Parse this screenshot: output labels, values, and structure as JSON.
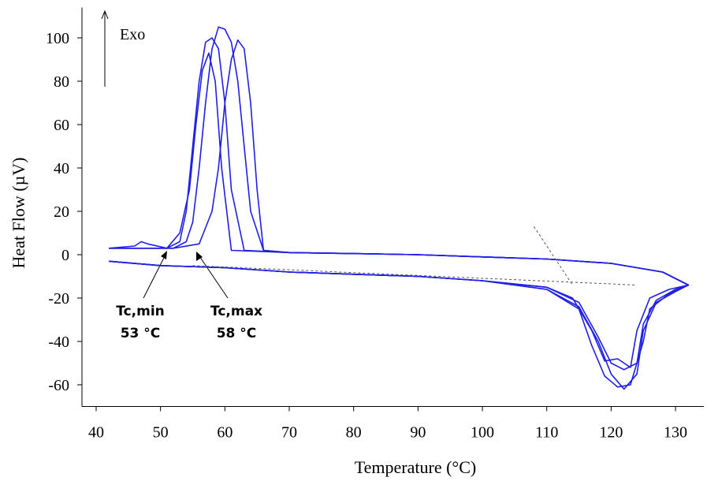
{
  "chart_data": {
    "type": "line",
    "x_label": "Temperature (°C)",
    "y_label": "Heat Flow (µV)",
    "xlim": [
      37.8,
      134.4
    ],
    "ylim": [
      -70,
      114
    ],
    "xticks": [
      40,
      50,
      60,
      70,
      80,
      90,
      100,
      110,
      120,
      130
    ],
    "yticks": [
      -60,
      -40,
      -20,
      0,
      20,
      40,
      60,
      80,
      100
    ],
    "annotations": [
      {
        "text": "Exo"
      },
      {
        "text": "Tc,min",
        "value_text": "53 °C"
      },
      {
        "text": "Tc,max",
        "value_text": "58 °C"
      }
    ],
    "series": [
      {
        "color": "#1f1fe6",
        "x": [
          42,
          50,
          60,
          70,
          80,
          90,
          100,
          110,
          115,
          118,
          120,
          122,
          124,
          125,
          127,
          130,
          132,
          128,
          120,
          110,
          100,
          90,
          80,
          70,
          66,
          64,
          63,
          62,
          61,
          60,
          59,
          58,
          57,
          56,
          55,
          54,
          52,
          48,
          42
        ],
        "values": [
          -3,
          -5,
          -6,
          -8,
          -9,
          -10,
          -12,
          -16,
          -24,
          -40,
          -55,
          -62,
          -55,
          -35,
          -22,
          -17,
          -14,
          -8,
          -4,
          -2,
          -1,
          0,
          0.5,
          1,
          2,
          20,
          50,
          80,
          98,
          104,
          105,
          95,
          70,
          40,
          15,
          6,
          3,
          3,
          3
        ]
      },
      {
        "color": "#1f1fe6",
        "x": [
          42,
          50,
          60,
          70,
          80,
          90,
          100,
          110,
          115,
          118,
          120,
          122,
          124,
          125,
          127,
          130,
          132,
          128,
          120,
          110,
          100,
          90,
          80,
          70,
          63,
          61,
          60,
          59,
          58,
          57,
          56,
          55,
          54,
          53,
          51,
          42
        ],
        "values": [
          -3,
          -5,
          -6,
          -8,
          -9,
          -10,
          -12,
          -15,
          -22,
          -38,
          -50,
          -53,
          -50,
          -32,
          -21,
          -16,
          -14,
          -8,
          -4,
          -2,
          -1,
          0,
          0.5,
          1,
          2,
          30,
          70,
          95,
          100,
          98,
          80,
          50,
          20,
          6,
          3,
          3
        ]
      },
      {
        "color": "#1f1fe6",
        "x": [
          42,
          50,
          60,
          70,
          80,
          90,
          100,
          110,
          115,
          117,
          119,
          121,
          123,
          125,
          126,
          129,
          132,
          128,
          120,
          110,
          100,
          90,
          80,
          70,
          66,
          65,
          64,
          63,
          62,
          61,
          60,
          59,
          58,
          56,
          52,
          42
        ],
        "values": [
          -3,
          -5,
          -6,
          -8,
          -9,
          -10,
          -12,
          -16,
          -25,
          -42,
          -56,
          -61,
          -60,
          -40,
          -25,
          -18,
          -14,
          -8,
          -4,
          -2,
          -1,
          0,
          0.5,
          1,
          2,
          30,
          70,
          95,
          99,
          90,
          70,
          40,
          20,
          5,
          3,
          3
        ]
      },
      {
        "color": "#1f1fe6",
        "x": [
          42,
          50,
          60,
          70,
          80,
          90,
          100,
          110,
          114,
          117,
          119,
          121,
          123,
          124,
          126,
          129,
          132,
          128,
          120,
          110,
          100,
          90,
          80,
          70,
          61,
          59.5,
          58.5,
          57.5,
          56.5,
          55.5,
          54.5,
          53,
          51,
          48,
          47,
          46,
          42
        ],
        "values": [
          -3,
          -5,
          -6,
          -8,
          -9,
          -10,
          -12,
          -15,
          -20,
          -35,
          -49,
          -48,
          -52,
          -35,
          -20,
          -16,
          -14,
          -8,
          -4,
          -2,
          -1,
          0,
          0.5,
          1,
          2,
          40,
          80,
          93,
          85,
          60,
          30,
          10,
          3,
          5,
          6,
          4,
          3
        ]
      },
      {
        "color": "#555555",
        "dashed": true,
        "x": [
          55,
          124
        ],
        "values": [
          -5,
          -14
        ]
      },
      {
        "color": "#555555",
        "dashed": true,
        "x": [
          108,
          114
        ],
        "values": [
          13,
          -14
        ]
      }
    ]
  }
}
